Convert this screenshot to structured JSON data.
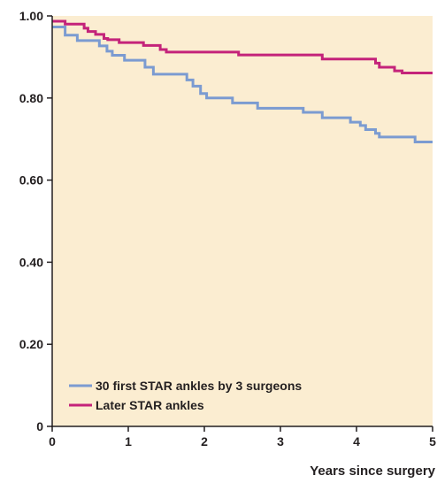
{
  "chart_data": {
    "type": "line",
    "xlabel": "Years since surgery",
    "ylabel": "",
    "xlim": [
      0,
      5
    ],
    "ylim": [
      0,
      1
    ],
    "x_ticks": [
      0,
      1,
      2,
      3,
      4,
      5
    ],
    "x_tick_labels": [
      "0",
      "1",
      "2",
      "3",
      "4",
      "5"
    ],
    "y_ticks": [
      0,
      0.2,
      0.4,
      0.6,
      0.8,
      1.0
    ],
    "y_tick_labels": [
      "0",
      "0.20",
      "0.40",
      "0.60",
      "0.80",
      "1.00"
    ],
    "grid": false,
    "legend": "bottom-left",
    "background_color": "#fbedd1",
    "series": [
      {
        "name": "30 first STAR ankles by 3 surgeons",
        "color": "#7b9bd1",
        "step": true,
        "points": [
          [
            0,
            0.973
          ],
          [
            0.17,
            0.953
          ],
          [
            0.33,
            0.94
          ],
          [
            0.62,
            0.927
          ],
          [
            0.72,
            0.914
          ],
          [
            0.79,
            0.904
          ],
          [
            0.95,
            0.892
          ],
          [
            1.22,
            0.875
          ],
          [
            1.33,
            0.858
          ],
          [
            1.77,
            0.844
          ],
          [
            1.85,
            0.829
          ],
          [
            1.95,
            0.811
          ],
          [
            2.03,
            0.8
          ],
          [
            2.37,
            0.788
          ],
          [
            2.7,
            0.775
          ],
          [
            3.3,
            0.765
          ],
          [
            3.55,
            0.752
          ],
          [
            3.92,
            0.741
          ],
          [
            4.05,
            0.733
          ],
          [
            4.12,
            0.723
          ],
          [
            4.25,
            0.714
          ],
          [
            4.3,
            0.705
          ],
          [
            4.77,
            0.693
          ],
          [
            5,
            0.693
          ]
        ]
      },
      {
        "name": "Later STAR ankles",
        "color": "#c4237a",
        "step": true,
        "points": [
          [
            0,
            0.987
          ],
          [
            0.17,
            0.98
          ],
          [
            0.42,
            0.97
          ],
          [
            0.47,
            0.962
          ],
          [
            0.57,
            0.955
          ],
          [
            0.68,
            0.945
          ],
          [
            0.73,
            0.942
          ],
          [
            0.88,
            0.935
          ],
          [
            1.2,
            0.928
          ],
          [
            1.42,
            0.918
          ],
          [
            1.5,
            0.912
          ],
          [
            2.45,
            0.905
          ],
          [
            3.55,
            0.895
          ],
          [
            4.25,
            0.885
          ],
          [
            4.3,
            0.875
          ],
          [
            4.5,
            0.866
          ],
          [
            4.6,
            0.861
          ],
          [
            5,
            0.861
          ]
        ]
      }
    ]
  }
}
